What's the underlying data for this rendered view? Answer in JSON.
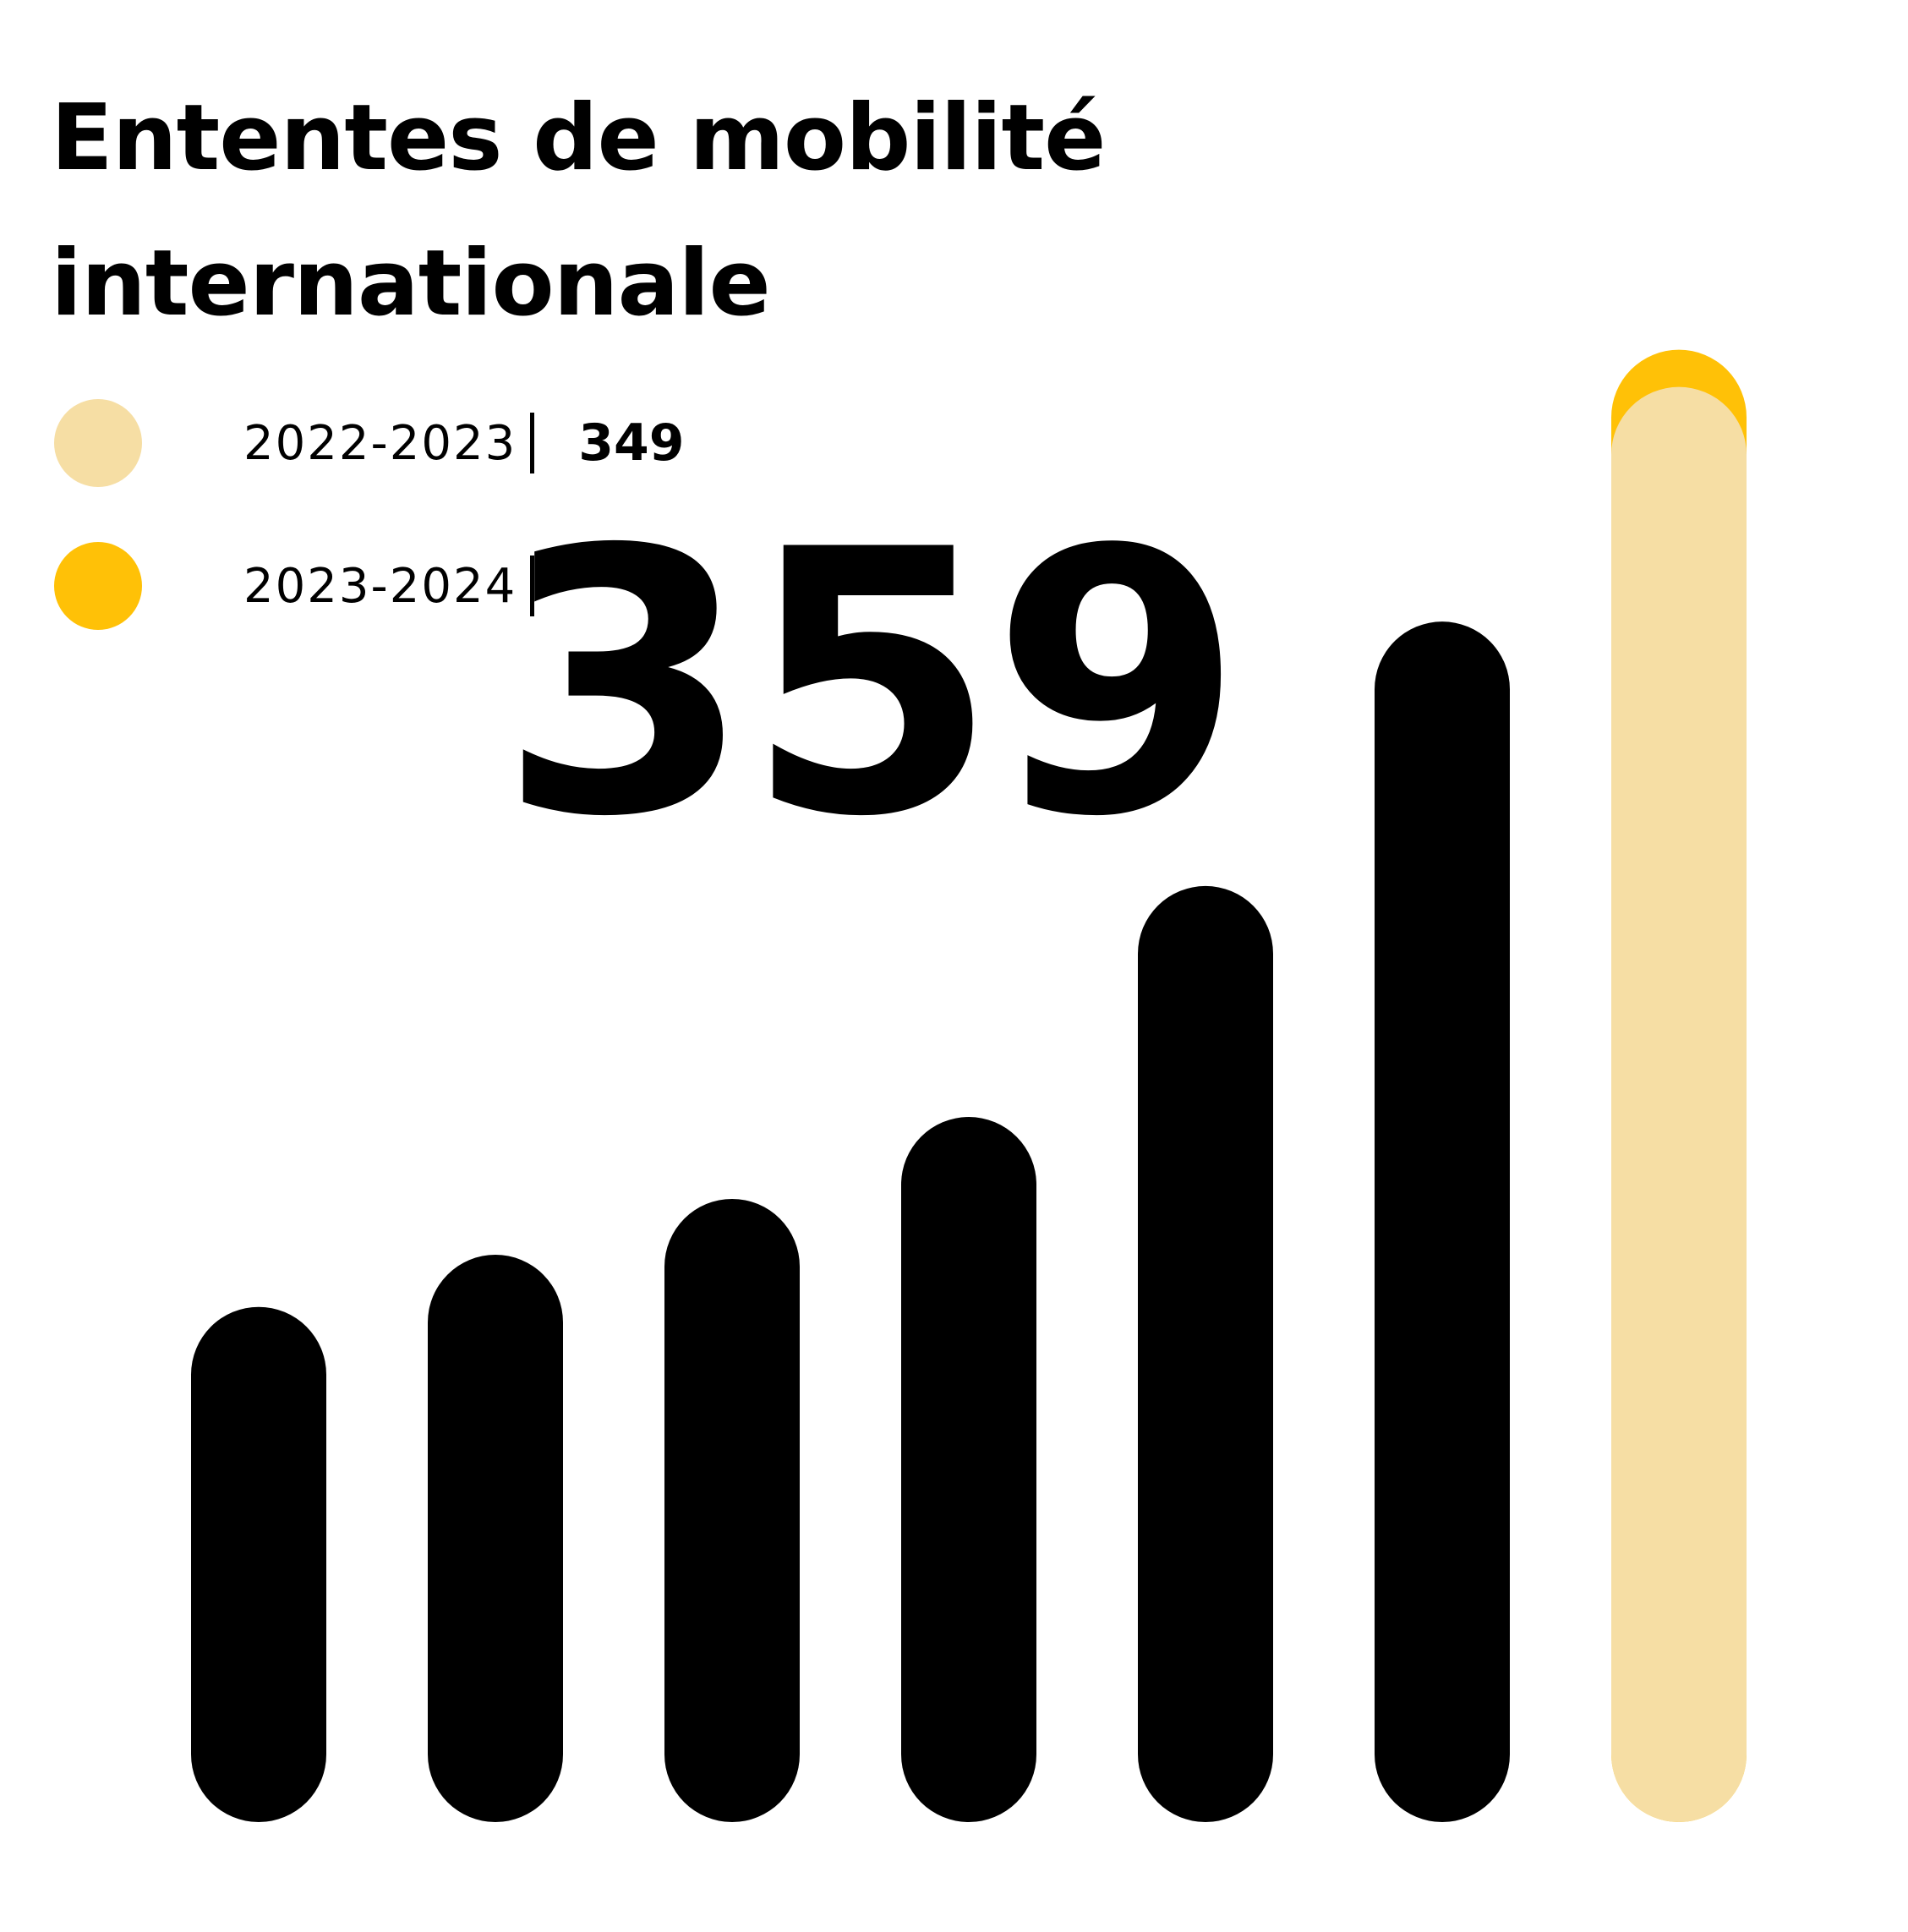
{
  "title": "Ententes de mobilité internationale",
  "colors": {
    "series_2022_2023": "#F6DEA4",
    "series_2023_2024": "#FFC107",
    "history_bars": "#000000",
    "background": "#FFFFFF"
  },
  "legend": [
    {
      "label": "2022-2023",
      "value": "349",
      "color": "#F6DEA4"
    },
    {
      "label": "2023-2024",
      "value": "359",
      "color": "#FFC107"
    }
  ],
  "chart_data": {
    "type": "bar",
    "title": "Ententes de mobilité internationale",
    "xlabel": "",
    "ylabel": "",
    "ylim": [
      0,
      400
    ],
    "grid": false,
    "legend_position": "top-left",
    "categories": [
      "",
      "",
      "",
      "",
      "",
      "",
      ""
    ],
    "series": [
      {
        "name": "",
        "values": [
          102,
          116,
          131,
          153,
          215,
          286,
          null
        ]
      },
      {
        "name": "2022-2023",
        "values": [
          null,
          null,
          null,
          null,
          null,
          null,
          349
        ]
      },
      {
        "name": "2023-2024",
        "values": [
          null,
          null,
          null,
          null,
          null,
          null,
          359
        ]
      }
    ]
  }
}
